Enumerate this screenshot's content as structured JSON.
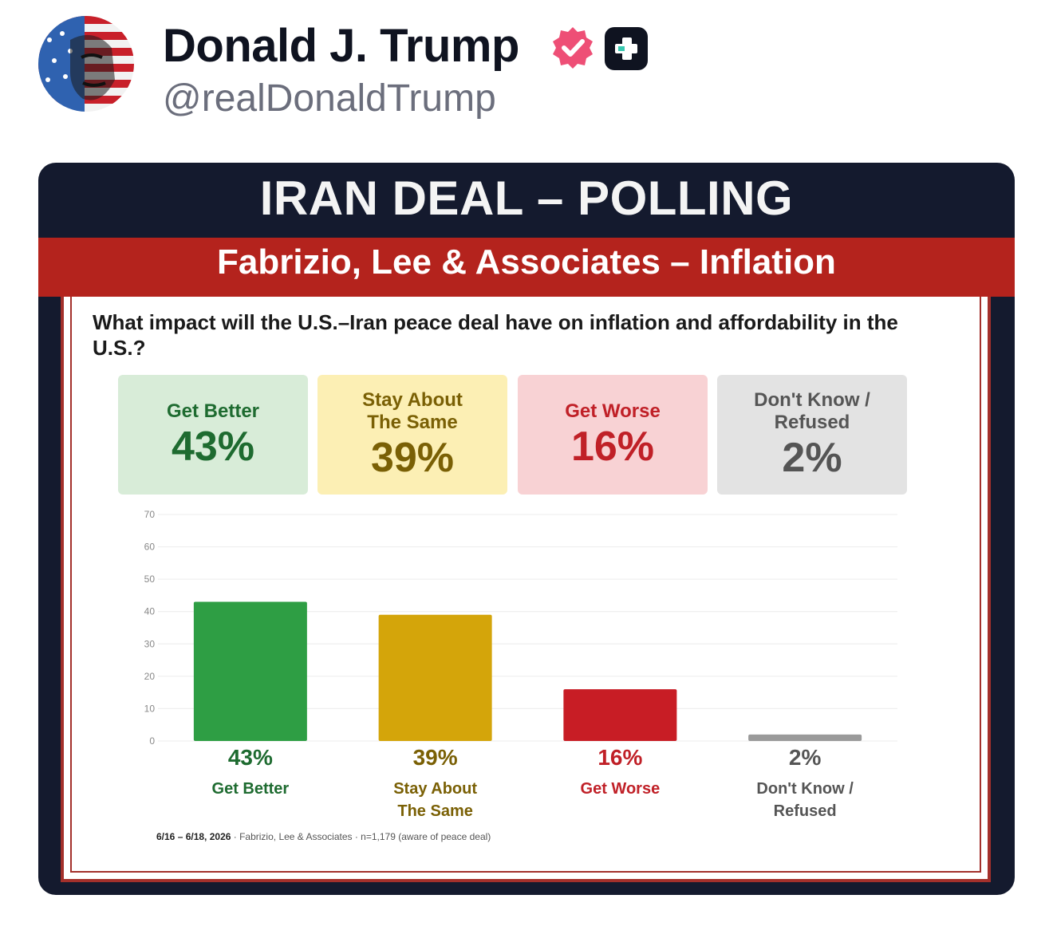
{
  "post": {
    "display_name": "Donald J. Trump",
    "handle": "@realDonaldTrump",
    "avatar_icon": "flag-portrait-avatar",
    "verified_icon": "verified-badge-icon",
    "plus_icon": "plus-badge-icon"
  },
  "card": {
    "title": "IRAN DEAL – POLLING",
    "subtitle": "Fabrizio, Lee & Associates – Inflation",
    "question": "What impact will the U.S.–Iran peace deal have on inflation and affordability in the U.S.?",
    "tiles": [
      {
        "label": "Get Better",
        "value": "43%",
        "color": "#1e6b30"
      },
      {
        "label": "Stay About The Same",
        "value": "39%",
        "color": "#7a6005"
      },
      {
        "label": "Get Worse",
        "value": "16%",
        "color": "#c02027"
      },
      {
        "label": "Don't Know / Refused",
        "value": "2%",
        "color": "#555555"
      }
    ],
    "footnote_dates": "6/16 – 6/18, 2026",
    "footnote_rest": "· Fabrizio, Lee & Associates · n=1,179 (aware of peace deal)",
    "colors": {
      "navy": "#141a2e",
      "red": "#b4231d"
    }
  },
  "chart_data": {
    "type": "bar",
    "categories": [
      "Get Better",
      "Stay About The Same",
      "Get Worse",
      "Don't Know / Refused"
    ],
    "category_lines": [
      [
        "Get Better"
      ],
      [
        "Stay About",
        "The Same"
      ],
      [
        "Get Worse"
      ],
      [
        "Don't Know /",
        "Refused"
      ]
    ],
    "values": [
      43,
      39,
      16,
      2
    ],
    "value_labels": [
      "43%",
      "39%",
      "16%",
      "2%"
    ],
    "bar_colors": [
      "#2e9e44",
      "#d4a50a",
      "#c81d25",
      "#9a9a9a"
    ],
    "label_colors": [
      "#1e6b30",
      "#7a6005",
      "#c02027",
      "#555555"
    ],
    "ylim": [
      0,
      70
    ],
    "yticks": [
      "0",
      "10",
      "20",
      "30",
      "40",
      "50",
      "60",
      "70"
    ],
    "grid": true
  }
}
